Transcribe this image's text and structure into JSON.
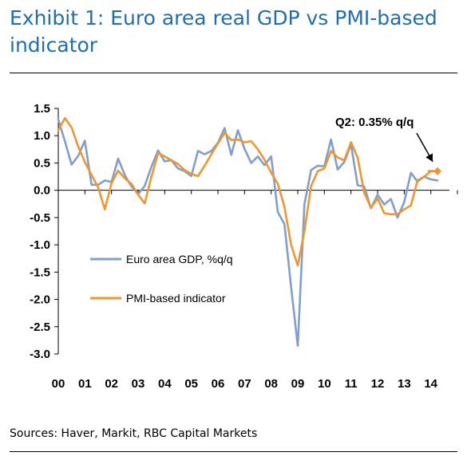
{
  "header": {
    "title": "Exhibit 1: Euro area real GDP vs PMI-based indicator",
    "source": "Sources: Haver, Markit, RBC Capital Markets"
  },
  "chart_data": {
    "type": "line",
    "title": "Exhibit 1: Euro area real GDP vs PMI-based indicator",
    "xlabel": "",
    "ylabel": "",
    "ylim": [
      -3.0,
      1.5
    ],
    "yticks": [
      "1.5",
      "1.0",
      "0.5",
      "0.0",
      "-0.5",
      "-1.0",
      "-1.5",
      "-2.0",
      "-2.5",
      "-3.0"
    ],
    "xticks": [
      "00",
      "01",
      "02",
      "03",
      "04",
      "05",
      "06",
      "07",
      "08",
      "09",
      "10",
      "11",
      "12",
      "13",
      "14"
    ],
    "grid": false,
    "legend_position": "left-middle",
    "series": [
      {
        "name": "Euro area GDP, %q/q",
        "color": "#7f9fd0",
        "x": [
          2000.0,
          2000.25,
          2000.5,
          2000.75,
          2001.0,
          2001.25,
          2001.5,
          2001.75,
          2002.0,
          2002.25,
          2002.5,
          2002.75,
          2003.0,
          2003.25,
          2003.5,
          2003.75,
          2004.0,
          2004.25,
          2004.5,
          2004.75,
          2005.0,
          2005.25,
          2005.5,
          2005.75,
          2006.0,
          2006.25,
          2006.5,
          2006.75,
          2007.0,
          2007.25,
          2007.5,
          2007.75,
          2008.0,
          2008.25,
          2008.5,
          2008.75,
          2009.0,
          2009.25,
          2009.5,
          2009.75,
          2010.0,
          2010.25,
          2010.5,
          2010.75,
          2011.0,
          2011.25,
          2011.5,
          2011.75,
          2012.0,
          2012.25,
          2012.5,
          2012.75,
          2013.0,
          2013.25,
          2013.5,
          2013.75,
          2014.0,
          2014.25
        ],
        "values": [
          1.3,
          0.9,
          0.47,
          0.63,
          0.91,
          0.1,
          0.1,
          0.18,
          0.15,
          0.58,
          0.28,
          0.07,
          -0.07,
          0.08,
          0.43,
          0.73,
          0.53,
          0.55,
          0.4,
          0.35,
          0.26,
          0.72,
          0.66,
          0.72,
          0.87,
          1.14,
          0.65,
          1.1,
          0.76,
          0.5,
          0.62,
          0.46,
          0.62,
          -0.4,
          -0.62,
          -1.78,
          -2.85,
          -0.26,
          0.37,
          0.45,
          0.44,
          0.93,
          0.38,
          0.52,
          0.84,
          0.09,
          0.07,
          -0.33,
          -0.08,
          -0.26,
          -0.16,
          -0.5,
          -0.22,
          0.32,
          0.16,
          0.25,
          0.2,
          0.18
        ]
      },
      {
        "name": "PMI-based indicator",
        "color": "#f0962d",
        "x": [
          2000.0,
          2000.25,
          2000.5,
          2000.75,
          2001.0,
          2001.25,
          2001.5,
          2001.75,
          2002.0,
          2002.25,
          2002.5,
          2002.75,
          2003.0,
          2003.25,
          2003.5,
          2003.75,
          2004.0,
          2004.25,
          2004.5,
          2004.75,
          2005.0,
          2005.25,
          2005.5,
          2005.75,
          2006.0,
          2006.25,
          2006.5,
          2006.75,
          2007.0,
          2007.25,
          2007.5,
          2007.75,
          2008.0,
          2008.25,
          2008.5,
          2008.75,
          2009.0,
          2009.25,
          2009.5,
          2009.75,
          2010.0,
          2010.25,
          2010.5,
          2010.75,
          2011.0,
          2011.25,
          2011.5,
          2011.75,
          2012.0,
          2012.25,
          2012.5,
          2012.75,
          2013.0,
          2013.25,
          2013.5,
          2013.75,
          2014.0,
          2014.25
        ],
        "values": [
          1.1,
          1.32,
          1.15,
          0.8,
          0.52,
          0.28,
          0.05,
          -0.35,
          0.13,
          0.36,
          0.22,
          0.12,
          -0.08,
          -0.24,
          0.25,
          0.68,
          0.62,
          0.55,
          0.48,
          0.37,
          0.3,
          0.26,
          0.45,
          0.66,
          0.86,
          1.05,
          0.92,
          0.93,
          0.88,
          0.9,
          0.75,
          0.56,
          0.32,
          0.12,
          -0.3,
          -1.0,
          -1.38,
          -0.75,
          0.08,
          0.35,
          0.4,
          0.72,
          0.6,
          0.55,
          0.88,
          0.6,
          -0.05,
          -0.32,
          -0.15,
          -0.42,
          -0.44,
          -0.44,
          -0.35,
          -0.28,
          0.18,
          0.25,
          0.35,
          0.35
        ]
      }
    ],
    "annotation": {
      "label": "Q2: 0.35% q/q",
      "x": 2014.25,
      "y": 0.35
    }
  }
}
